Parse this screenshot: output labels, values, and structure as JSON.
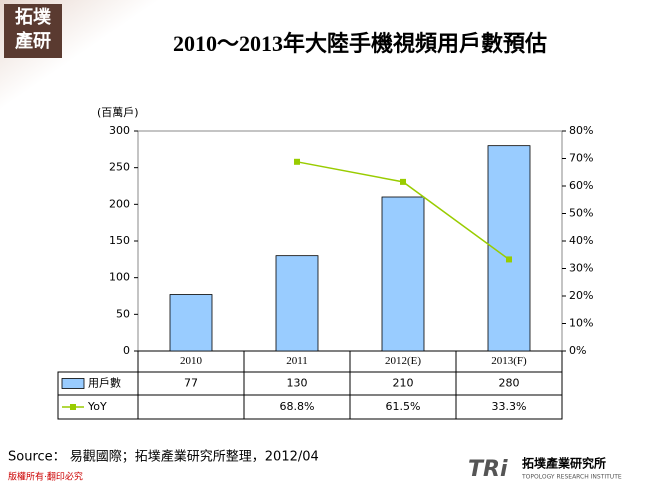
{
  "chart_data": {
    "type": "bar-line",
    "title": "2010～2013年大陸手機視頻用戶數預估",
    "y_label": "(百萬戶)",
    "categories": [
      "2010",
      "2011",
      "2012(E)",
      "2013(F)"
    ],
    "series": [
      {
        "name": "用戶數",
        "color": "#99ccff",
        "type": "bar",
        "values": [
          77,
          130,
          210,
          280
        ]
      },
      {
        "name": "YoY",
        "color": "#99cc00",
        "type": "line",
        "axis": "y2",
        "values": [
          null,
          68.8,
          61.5,
          33.3
        ],
        "value_labels": [
          null,
          "68.8%",
          "61.5%",
          "33.3%"
        ]
      }
    ],
    "ylim": [
      0,
      300
    ],
    "yticks": [
      0,
      50,
      100,
      150,
      200,
      250,
      300
    ],
    "y2lim": [
      0,
      80
    ],
    "y2ticks": [
      {
        "value": 0,
        "label": "0%"
      },
      {
        "value": 10,
        "label": "10%"
      },
      {
        "value": 20,
        "label": "20%"
      },
      {
        "value": 30,
        "label": "30%"
      },
      {
        "value": 40,
        "label": "40%"
      },
      {
        "value": 50,
        "label": "50%"
      },
      {
        "value": 60,
        "label": "60%"
      },
      {
        "value": 70,
        "label": "70%"
      },
      {
        "value": 80,
        "label": "80%"
      }
    ],
    "data_table": true
  },
  "source": "Source： 易觀國際；拓墣產業研究所整理，2012/04",
  "logo": {
    "top": "拓墣",
    "bottom": "產研"
  },
  "copyright": "版權所有‧翻印必究",
  "brand": {
    "mark": "TRi",
    "name": "拓墣產業研究所",
    "english": "TOPOLOGY RESEARCH INSTITUTE"
  }
}
